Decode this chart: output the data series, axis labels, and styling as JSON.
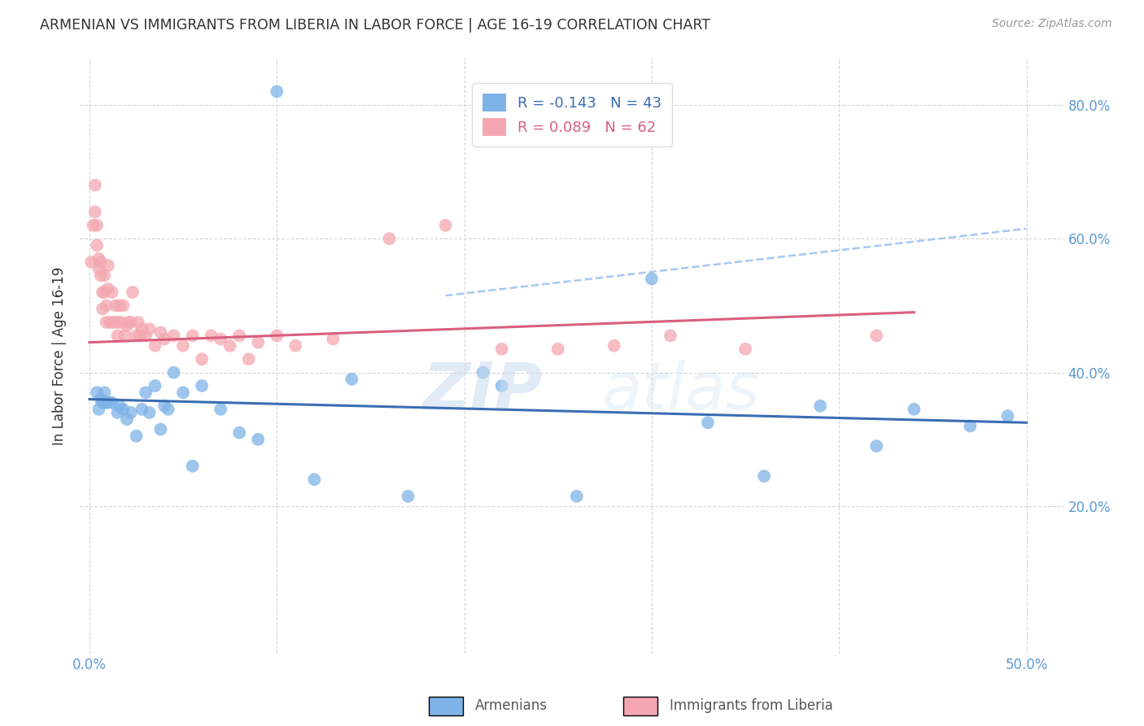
{
  "title": "ARMENIAN VS IMMIGRANTS FROM LIBERIA IN LABOR FORCE | AGE 16-19 CORRELATION CHART",
  "source": "Source: ZipAtlas.com",
  "ylabel": "In Labor Force | Age 16-19",
  "xlim": [
    -0.005,
    0.52
  ],
  "ylim": [
    -0.02,
    0.87
  ],
  "legend_blue_r": "-0.143",
  "legend_blue_n": 43,
  "legend_pink_r": "0.089",
  "legend_pink_n": 62,
  "blue_color": "#7EB3E8",
  "pink_color": "#F4A7B0",
  "blue_line_color": "#3B6DB3",
  "pink_line_color": "#D95F7F",
  "dashed_color": "#A8C8F0",
  "watermark_zip": "ZIP",
  "watermark_atlas": "atlas",
  "blue_scatter_x": [
    0.004,
    0.005,
    0.006,
    0.007,
    0.008,
    0.009,
    0.01,
    0.012,
    0.015,
    0.016,
    0.018,
    0.02,
    0.022,
    0.025,
    0.028,
    0.03,
    0.032,
    0.035,
    0.038,
    0.04,
    0.042,
    0.045,
    0.05,
    0.055,
    0.06,
    0.07,
    0.08,
    0.09,
    0.1,
    0.12,
    0.14,
    0.17,
    0.21,
    0.22,
    0.26,
    0.3,
    0.33,
    0.36,
    0.39,
    0.42,
    0.44,
    0.47,
    0.49
  ],
  "blue_scatter_y": [
    0.37,
    0.345,
    0.36,
    0.355,
    0.37,
    0.355,
    0.355,
    0.355,
    0.34,
    0.35,
    0.345,
    0.33,
    0.34,
    0.305,
    0.345,
    0.37,
    0.34,
    0.38,
    0.315,
    0.35,
    0.345,
    0.4,
    0.37,
    0.26,
    0.38,
    0.345,
    0.31,
    0.3,
    0.82,
    0.24,
    0.39,
    0.215,
    0.4,
    0.38,
    0.215,
    0.54,
    0.325,
    0.245,
    0.35,
    0.29,
    0.345,
    0.32,
    0.335
  ],
  "pink_scatter_x": [
    0.001,
    0.002,
    0.003,
    0.003,
    0.004,
    0.004,
    0.005,
    0.005,
    0.006,
    0.006,
    0.007,
    0.007,
    0.008,
    0.008,
    0.009,
    0.009,
    0.01,
    0.01,
    0.011,
    0.012,
    0.013,
    0.014,
    0.015,
    0.015,
    0.016,
    0.017,
    0.018,
    0.019,
    0.02,
    0.021,
    0.022,
    0.023,
    0.025,
    0.026,
    0.027,
    0.028,
    0.03,
    0.032,
    0.035,
    0.038,
    0.04,
    0.045,
    0.05,
    0.055,
    0.06,
    0.065,
    0.07,
    0.075,
    0.08,
    0.085,
    0.09,
    0.1,
    0.11,
    0.13,
    0.16,
    0.19,
    0.22,
    0.25,
    0.28,
    0.31,
    0.35,
    0.42
  ],
  "pink_scatter_y": [
    0.565,
    0.62,
    0.68,
    0.64,
    0.62,
    0.59,
    0.57,
    0.555,
    0.565,
    0.545,
    0.52,
    0.495,
    0.545,
    0.52,
    0.5,
    0.475,
    0.56,
    0.525,
    0.475,
    0.52,
    0.475,
    0.5,
    0.455,
    0.475,
    0.5,
    0.475,
    0.5,
    0.455,
    0.47,
    0.475,
    0.475,
    0.52,
    0.455,
    0.475,
    0.455,
    0.465,
    0.455,
    0.465,
    0.44,
    0.46,
    0.45,
    0.455,
    0.44,
    0.455,
    0.42,
    0.455,
    0.45,
    0.44,
    0.455,
    0.42,
    0.445,
    0.455,
    0.44,
    0.45,
    0.6,
    0.62,
    0.435,
    0.435,
    0.44,
    0.455,
    0.435,
    0.455
  ],
  "blue_line_x": [
    0.0,
    0.5
  ],
  "blue_line_y": [
    0.36,
    0.325
  ],
  "pink_line_x": [
    0.0,
    0.44
  ],
  "pink_line_y": [
    0.445,
    0.49
  ],
  "dashed_line_x": [
    0.19,
    0.5
  ],
  "dashed_line_y": [
    0.515,
    0.615
  ]
}
